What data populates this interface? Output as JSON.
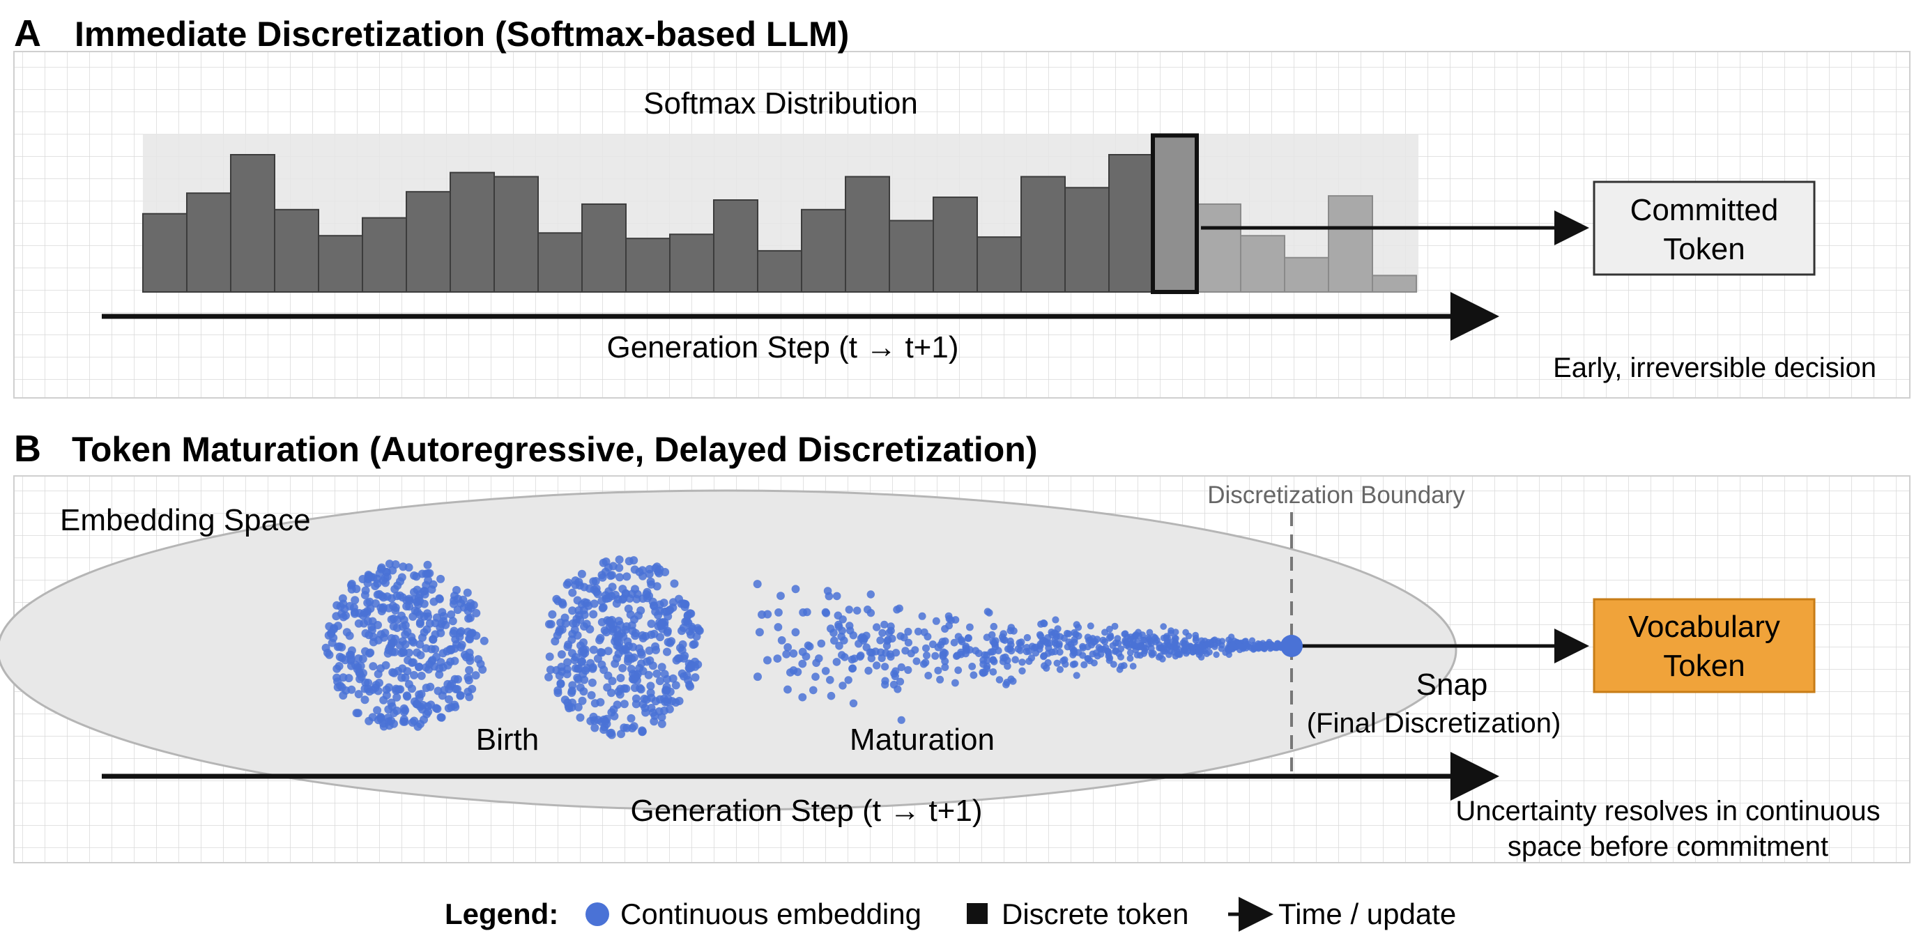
{
  "panel_a": {
    "letter": "A",
    "title": "Immediate Discretization (Softmax-based LLM)",
    "distribution_label": "Softmax Distribution",
    "bars": [
      0.57,
      0.72,
      1.0,
      0.6,
      0.41,
      0.54,
      0.73,
      0.87,
      0.84,
      0.43,
      0.64,
      0.39,
      0.42,
      0.67,
      0.3,
      0.6,
      0.84,
      0.52,
      0.69,
      0.4,
      0.84,
      0.76,
      1.0,
      1.14,
      0.64,
      0.41,
      0.25,
      0.7,
      0.12
    ],
    "selected_index": 23,
    "committed_label_line1": "Committed",
    "committed_label_line2": "Token",
    "axis_label": "Generation Step (t → t+1)",
    "caption": "Early, irreversible decision"
  },
  "panel_b": {
    "letter": "B",
    "title": "Token Maturation (Autoregressive, Delayed Discretization)",
    "space_label": "Embedding Space",
    "boundary_label": "Discretization Boundary",
    "birth_label": "Birth",
    "maturation_label": "Maturation",
    "snap_label": "Snap",
    "snap_sublabel": "(Final Discretization)",
    "vocab_label_line1": "Vocabulary",
    "vocab_label_line2": "Token",
    "axis_label": "Generation Step (t → t+1)",
    "caption_line1": "Uncertainty resolves in continuous",
    "caption_line2": "space before commitment"
  },
  "legend": {
    "title": "Legend:",
    "item1": "Continuous embedding",
    "item2": "Discrete token",
    "item3": "Time / update"
  },
  "colors": {
    "embedding_dot": "#4a72d6",
    "vocab_token_fill": "#f0a33a",
    "bar_fill": "#6a6a6a",
    "bar_faded": "#a9a9a9"
  }
}
